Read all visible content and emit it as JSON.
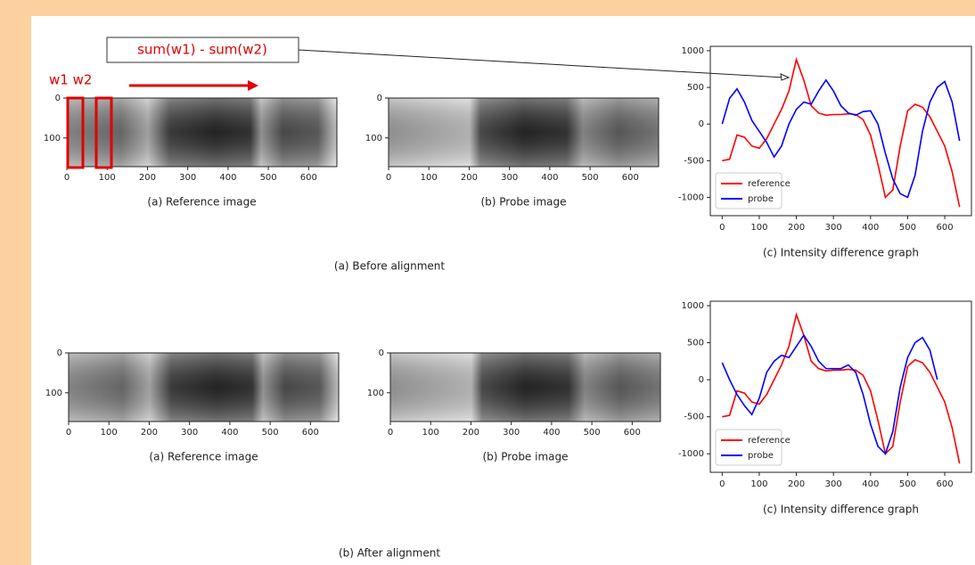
{
  "annotations": {
    "formula": "sum(w1) - sum(w2)",
    "windows": "w1 w2"
  },
  "sections": [
    {
      "title": "(a) Before alignment"
    },
    {
      "title": "(b) After alignment"
    }
  ],
  "images": [
    {
      "caption": "(a) Reference image",
      "xlim": [
        0,
        670
      ],
      "ylim": [
        0,
        172
      ],
      "xticks": [
        0,
        100,
        200,
        300,
        400,
        500,
        600
      ],
      "yticks": [
        0,
        100
      ]
    },
    {
      "caption": "(b) Probe image",
      "xlim": [
        0,
        670
      ],
      "ylim": [
        0,
        172
      ],
      "xticks": [
        0,
        100,
        200,
        300,
        400,
        500,
        600
      ],
      "yticks": [
        0,
        100
      ]
    },
    {
      "caption": "(a) Reference image",
      "xlim": [
        0,
        670
      ],
      "ylim": [
        0,
        172
      ],
      "xticks": [
        0,
        100,
        200,
        300,
        400,
        500,
        600
      ],
      "yticks": [
        0,
        100
      ]
    },
    {
      "caption": "(b) Probe image",
      "xlim": [
        0,
        670
      ],
      "ylim": [
        0,
        172
      ],
      "xticks": [
        0,
        100,
        200,
        300,
        400,
        500,
        600
      ],
      "yticks": [
        0,
        100
      ]
    }
  ],
  "chart_data": [
    {
      "type": "line",
      "caption": "(c) Intensity difference graph",
      "x": [
        0,
        20,
        40,
        60,
        80,
        100,
        120,
        140,
        160,
        180,
        200,
        220,
        240,
        260,
        280,
        300,
        320,
        340,
        360,
        380,
        400,
        420,
        440,
        460,
        480,
        500,
        520,
        540,
        560,
        580,
        600,
        620,
        640
      ],
      "series": [
        {
          "name": "reference",
          "color": "#ff0000",
          "values": [
            -500,
            -480,
            -150,
            -180,
            -300,
            -330,
            -200,
            0,
            200,
            450,
            880,
            600,
            250,
            150,
            120,
            130,
            130,
            140,
            130,
            60,
            -150,
            -550,
            -1000,
            -900,
            -300,
            180,
            270,
            230,
            100,
            -100,
            -300,
            -650,
            -1130
          ]
        },
        {
          "name": "probe",
          "color": "#0000ff",
          "values": [
            0,
            350,
            480,
            300,
            50,
            -100,
            -250,
            -450,
            -300,
            0,
            200,
            300,
            270,
            450,
            600,
            450,
            250,
            150,
            120,
            170,
            180,
            0,
            -400,
            -750,
            -950,
            -1000,
            -700,
            -100,
            300,
            500,
            580,
            300,
            -230
          ]
        }
      ],
      "xlim": [
        -32,
        672
      ],
      "ylim": [
        -1250,
        1060
      ],
      "xticks": [
        0,
        100,
        200,
        300,
        400,
        500,
        600
      ],
      "yticks": [
        -1000,
        -500,
        0,
        500,
        1000
      ],
      "legend": "lower left"
    },
    {
      "type": "line",
      "caption": "(c) Intensity difference graph",
      "x": [
        0,
        20,
        40,
        60,
        80,
        100,
        120,
        140,
        160,
        180,
        200,
        220,
        240,
        260,
        280,
        300,
        320,
        340,
        360,
        380,
        400,
        420,
        440,
        460,
        480,
        500,
        520,
        540,
        560,
        580,
        600,
        620,
        640
      ],
      "series": [
        {
          "name": "reference",
          "color": "#ff0000",
          "values": [
            -500,
            -480,
            -150,
            -180,
            -300,
            -330,
            -200,
            0,
            200,
            450,
            880,
            600,
            250,
            150,
            120,
            130,
            130,
            140,
            130,
            60,
            -150,
            -550,
            -1000,
            -900,
            -300,
            180,
            270,
            230,
            100,
            -100,
            -300,
            -650,
            -1130
          ]
        },
        {
          "name": "probe",
          "color": "#0000ff",
          "values": [
            230,
            0,
            -200,
            -350,
            -470,
            -250,
            100,
            250,
            330,
            300,
            450,
            600,
            450,
            250,
            150,
            150,
            150,
            200,
            100,
            -200,
            -600,
            -900,
            -1000,
            -700,
            -100,
            300,
            500,
            570,
            400,
            0,
            null,
            null,
            null
          ]
        }
      ],
      "xlim": [
        -32,
        672
      ],
      "ylim": [
        -1250,
        1060
      ],
      "xticks": [
        0,
        100,
        200,
        300,
        400,
        500,
        600
      ],
      "yticks": [
        -1000,
        -500,
        0,
        500,
        1000
      ],
      "legend": "lower left"
    }
  ]
}
